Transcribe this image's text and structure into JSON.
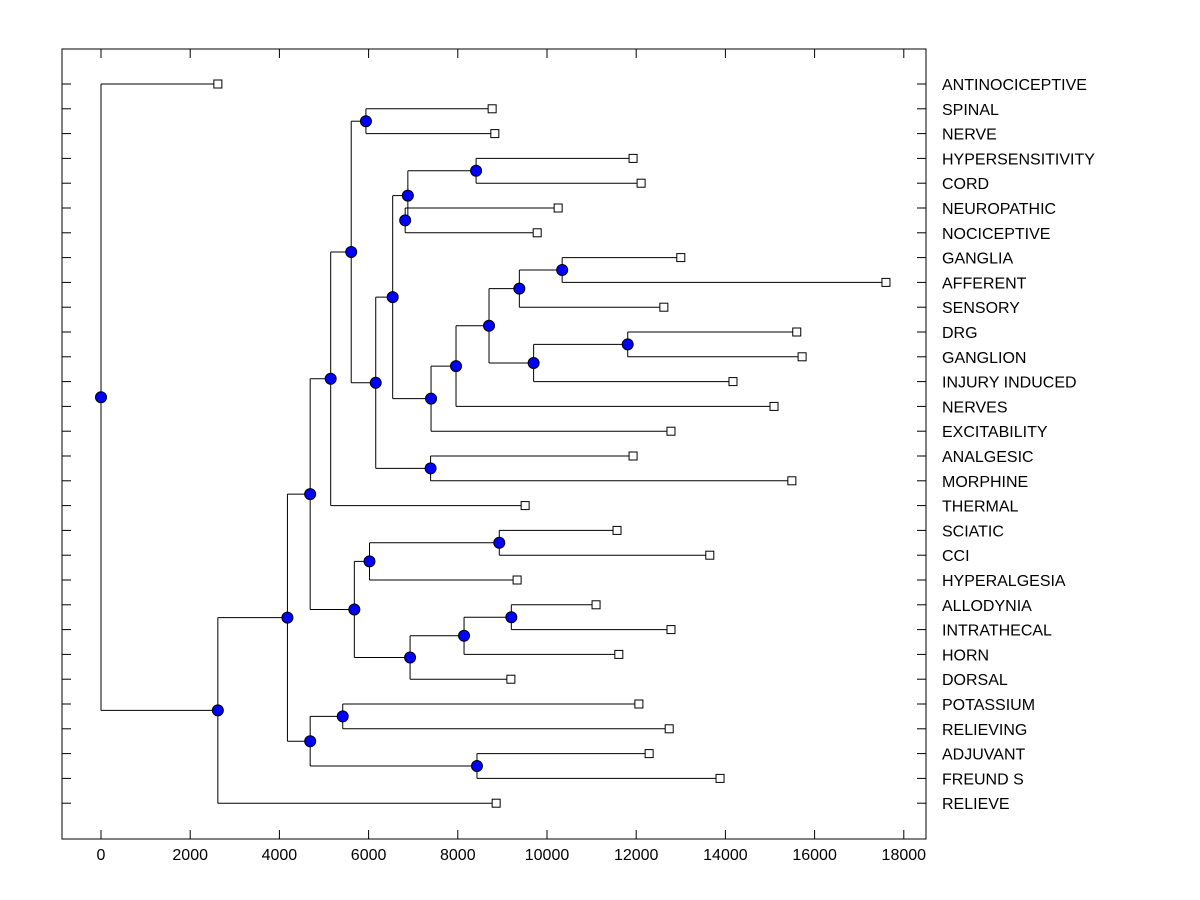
{
  "chart_data": {
    "type": "dendrogram",
    "title": "",
    "xlabel": "",
    "ylabel": "",
    "xlim": [
      -850,
      18450
    ],
    "xticks": [
      0,
      2000,
      4000,
      6000,
      8000,
      10000,
      12000,
      14000,
      16000,
      18000
    ],
    "xtick_labels": [
      "0",
      "2000",
      "4000",
      "6000",
      "8000",
      "10000",
      "12000",
      "14000",
      "16000",
      "18000"
    ],
    "grid": false,
    "node_color": "#0000ff",
    "leaves": [
      {
        "label": "ANTINOCICEPTIVE",
        "value": 2620
      },
      {
        "label": "SPINAL",
        "value": 8770
      },
      {
        "label": "NERVE",
        "value": 8830
      },
      {
        "label": "HYPERSENSITIVITY",
        "value": 11930
      },
      {
        "label": "CORD",
        "value": 12110
      },
      {
        "label": "NEUROPATHIC",
        "value": 10250
      },
      {
        "label": "NOCICEPTIVE",
        "value": 9780
      },
      {
        "label": "GANGLIA",
        "value": 13000
      },
      {
        "label": "AFFERENT",
        "value": 17600
      },
      {
        "label": "SENSORY",
        "value": 12620
      },
      {
        "label": "DRG",
        "value": 15600
      },
      {
        "label": "GANGLION",
        "value": 15720
      },
      {
        "label": "INJURY INDUCED",
        "value": 14170
      },
      {
        "label": "NERVES",
        "value": 15090
      },
      {
        "label": "EXCITABILITY",
        "value": 12780
      },
      {
        "label": "ANALGESIC",
        "value": 11930
      },
      {
        "label": "MORPHINE",
        "value": 15490
      },
      {
        "label": "THERMAL",
        "value": 9510
      },
      {
        "label": "SCIATIC",
        "value": 11570
      },
      {
        "label": "CCI",
        "value": 13650
      },
      {
        "label": "HYPERALGESIA",
        "value": 9330
      },
      {
        "label": "ALLODYNIA",
        "value": 11100
      },
      {
        "label": "INTRATHECAL",
        "value": 12780
      },
      {
        "label": "HORN",
        "value": 11610
      },
      {
        "label": "DORSAL",
        "value": 9190
      },
      {
        "label": "POTASSIUM",
        "value": 12060
      },
      {
        "label": "RELIEVING",
        "value": 12740
      },
      {
        "label": "ADJUVANT",
        "value": 12290
      },
      {
        "label": "FREUND S",
        "value": 13880
      },
      {
        "label": "RELIEVE",
        "value": 8860
      }
    ],
    "tree": {
      "value": 0,
      "children": [
        {
          "leaf": 0
        },
        {
          "value": 2620,
          "children": [
            {
              "value": 4180,
              "children": [
                {
                  "value": 4690,
                  "children": [
                    {
                      "value": 5150,
                      "children": [
                        {
                          "value": 5610,
                          "children": [
                            {
                              "value": 5940,
                              "children": [
                                {
                                  "leaf": 1
                                },
                                {
                                  "leaf": 2
                                }
                              ]
                            },
                            {
                              "value": 6540,
                              "children": [
                                {
                                  "value": 6880,
                                  "children": [
                                    {
                                      "value": 8410,
                                      "children": [
                                        {
                                          "leaf": 3
                                        },
                                        {
                                          "leaf": 4
                                        }
                                      ]
                                    },
                                    {
                                      "value": 6820,
                                      "children": [
                                        {
                                          "leaf": 5
                                        },
                                        {
                                          "leaf": 6
                                        }
                                      ]
                                    }
                                  ]
                                },
                                {
                                  "value": 7400,
                                  "children": [
                                    {
                                      "value": 7960,
                                      "children": [
                                        {
                                          "value": 8700,
                                          "children": [
                                            {
                                              "value": 9380,
                                              "children": [
                                                {
                                                  "value": 10340,
                                                  "children": [
                                                    {
                                                      "leaf": 7
                                                    },
                                                    {
                                                      "leaf": 8
                                                    }
                                                  ]
                                                },
                                                {
                                                  "leaf": 9
                                                }
                                              ]
                                            },
                                            {
                                              "value": 9700,
                                              "children": [
                                                {
                                                  "value": 11810,
                                                  "children": [
                                                    {
                                                      "leaf": 10
                                                    },
                                                    {
                                                      "leaf": 11
                                                    }
                                                  ]
                                                },
                                                {
                                                  "leaf": 12
                                                }
                                              ]
                                            }
                                          ]
                                        },
                                        {
                                          "leaf": 13
                                        }
                                      ]
                                    },
                                    {
                                      "leaf": 14
                                    }
                                  ]
                                }
                              ]
                            }
                          ]
                        },
                        {
                          "value": 6160,
                          "children": [
                            {
                              "value": 6540,
                              "children": []
                            },
                            {
                              "value": 7390,
                              "children": [
                                {
                                  "leaf": 15
                                },
                                {
                                  "leaf": 16
                                }
                              ]
                            }
                          ]
                        },
                        {
                          "leaf": 17
                        }
                      ]
                    }
                  ]
                }
              ]
            }
          ]
        }
      ]
    }
  }
}
